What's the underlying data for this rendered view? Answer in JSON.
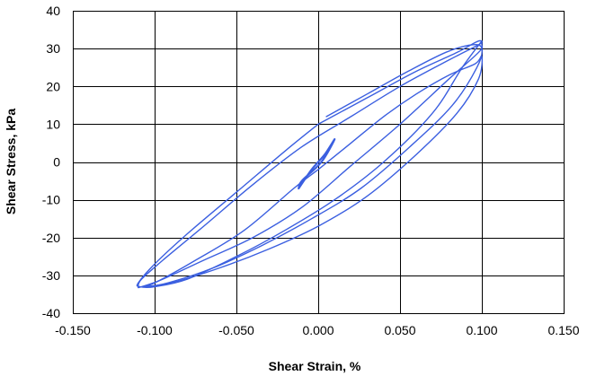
{
  "chart_data": {
    "type": "line",
    "title": "",
    "xlabel": "Shear Strain, %",
    "ylabel": "Shear Stress, kPa",
    "xlim": [
      -0.15,
      0.15
    ],
    "ylim": [
      -40,
      40
    ],
    "x_ticks": [
      -0.15,
      -0.1,
      -0.05,
      0.0,
      0.05,
      0.1,
      0.15
    ],
    "x_tick_labels": [
      "-0.150",
      "-0.100",
      "-0.050",
      "0.000",
      "0.050",
      "0.100",
      "0.150"
    ],
    "y_ticks": [
      -40,
      -30,
      -20,
      -10,
      0,
      10,
      20,
      30,
      40
    ],
    "y_tick_labels": [
      "-40",
      "-30",
      "-20",
      "-10",
      "0",
      "10",
      "20",
      "30",
      "40"
    ],
    "grid": true,
    "legend": "none",
    "color": "#3B5FE0",
    "series": [
      {
        "x": [
          -0.012,
          -0.004,
          0.004,
          0.01,
          0.002,
          -0.01,
          -0.012
        ],
        "y": [
          -7,
          -2,
          2,
          6,
          0,
          -5,
          -7
        ]
      },
      {
        "x": [
          0.0,
          0.03,
          0.06,
          0.085,
          0.098,
          0.1,
          0.098,
          0.08,
          0.05,
          0.02,
          -0.01,
          -0.04,
          -0.07,
          -0.095,
          -0.108,
          -0.11,
          -0.108,
          -0.095,
          -0.07,
          -0.04,
          -0.01,
          0.02,
          0.05,
          0.08,
          0.098,
          0.1
        ],
        "y": [
          10,
          17,
          24,
          29,
          32,
          31,
          29,
          22,
          10,
          -1,
          -12,
          -20,
          -26,
          -31,
          -33,
          -33,
          -31,
          -26,
          -17,
          -6,
          4,
          12,
          20,
          27,
          31,
          32
        ]
      },
      {
        "x": [
          0.1,
          0.088,
          0.07,
          0.04,
          0.01,
          -0.02,
          -0.05,
          -0.08,
          -0.1,
          -0.109,
          -0.11,
          -0.1,
          -0.08,
          -0.05,
          -0.02,
          0.0
        ],
        "y": [
          32,
          25,
          13,
          0,
          -10,
          -18,
          -25,
          -31,
          -33,
          -33,
          -32,
          -27,
          -19,
          -8,
          3,
          10
        ]
      },
      {
        "x": [
          0.0,
          0.02,
          0.04,
          0.06,
          0.08,
          0.096,
          0.1,
          0.098,
          0.085,
          0.06,
          0.03,
          0.0,
          -0.03,
          -0.06,
          -0.09,
          -0.107,
          -0.1,
          -0.075,
          -0.045,
          -0.015,
          0.0
        ],
        "y": [
          -2,
          5,
          12,
          18,
          23,
          26,
          28,
          22,
          13,
          2,
          -9,
          -17,
          -23,
          -28,
          -32,
          -33,
          -32,
          -26,
          -18,
          -7,
          -2
        ]
      },
      {
        "x": [
          0.005,
          0.03,
          0.055,
          0.078,
          0.094,
          0.1,
          0.097,
          0.082,
          0.056,
          0.026,
          -0.004,
          -0.034,
          -0.064,
          -0.092,
          -0.106
        ],
        "y": [
          12,
          18,
          24,
          29,
          31,
          30,
          25,
          15,
          4,
          -7,
          -15,
          -22,
          -28,
          -32,
          -33
        ]
      }
    ]
  }
}
